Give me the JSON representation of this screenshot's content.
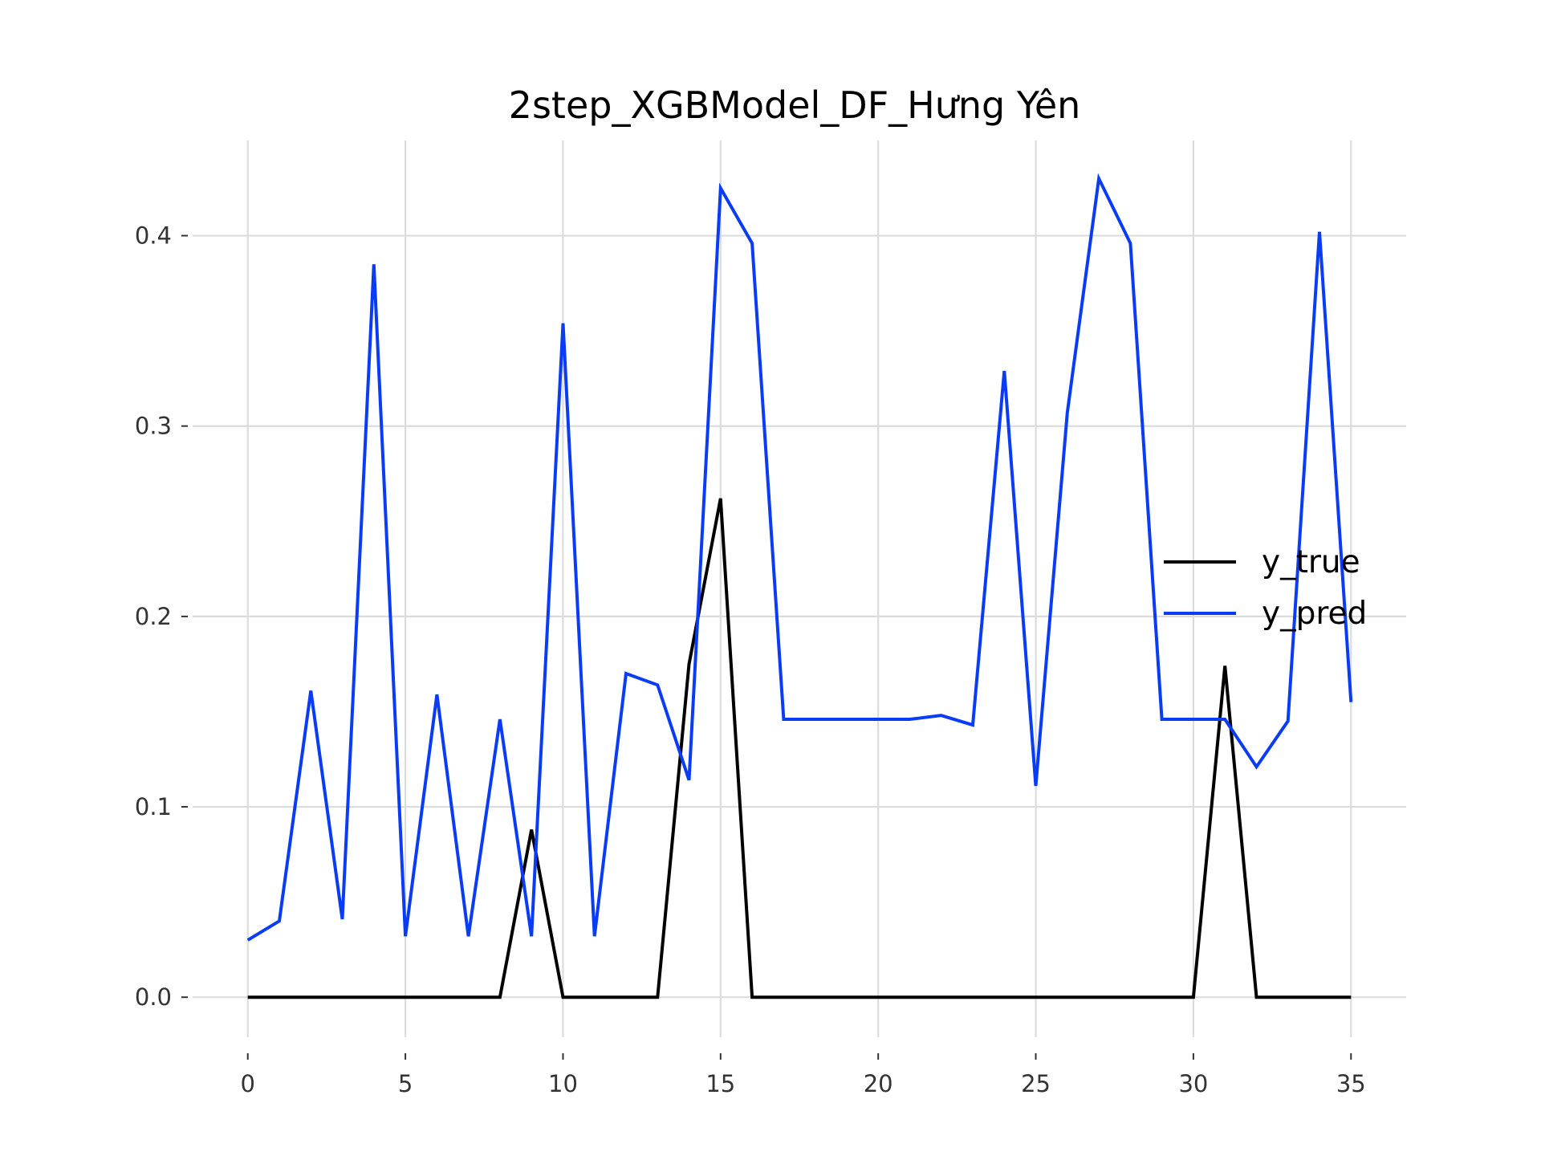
{
  "chart_data": {
    "type": "line",
    "title": "2step_XGBModel_DF_Hưng Yên",
    "xlabel": "",
    "ylabel": "",
    "xlim": [
      -1.75,
      36.75
    ],
    "ylim": [
      -0.021,
      0.45
    ],
    "x_ticks": [
      0,
      5,
      10,
      15,
      20,
      25,
      30,
      35
    ],
    "y_ticks": [
      0.0,
      0.1,
      0.2,
      0.3,
      0.4
    ],
    "y_tick_labels": [
      "0.0",
      "0.1",
      "0.2",
      "0.3",
      "0.4"
    ],
    "grid": true,
    "legend_position": "center-right",
    "x": [
      0,
      1,
      2,
      3,
      4,
      5,
      6,
      7,
      8,
      9,
      10,
      11,
      12,
      13,
      14,
      15,
      16,
      17,
      18,
      19,
      20,
      21,
      22,
      23,
      24,
      25,
      26,
      27,
      28,
      29,
      30,
      31,
      32,
      33,
      34,
      35
    ],
    "series": [
      {
        "name": "y_true",
        "color": "#000000",
        "values": [
          0,
          0,
          0,
          0,
          0,
          0,
          0,
          0,
          0,
          0.088,
          0,
          0,
          0,
          0,
          0.175,
          0.262,
          0,
          0,
          0,
          0,
          0,
          0,
          0,
          0,
          0,
          0,
          0,
          0,
          0,
          0,
          0,
          0.174,
          0,
          0,
          0,
          0
        ]
      },
      {
        "name": "y_pred",
        "color": "#0a3cf5",
        "values": [
          0.03,
          0.04,
          0.161,
          0.041,
          0.385,
          0.032,
          0.159,
          0.032,
          0.146,
          0.032,
          0.354,
          0.032,
          0.17,
          0.164,
          0.114,
          0.425,
          0.396,
          0.146,
          0.146,
          0.146,
          0.146,
          0.146,
          0.148,
          0.143,
          0.329,
          0.111,
          0.307,
          0.43,
          0.396,
          0.146,
          0.146,
          0.146,
          0.121,
          0.145,
          0.402,
          0.155
        ]
      }
    ]
  }
}
